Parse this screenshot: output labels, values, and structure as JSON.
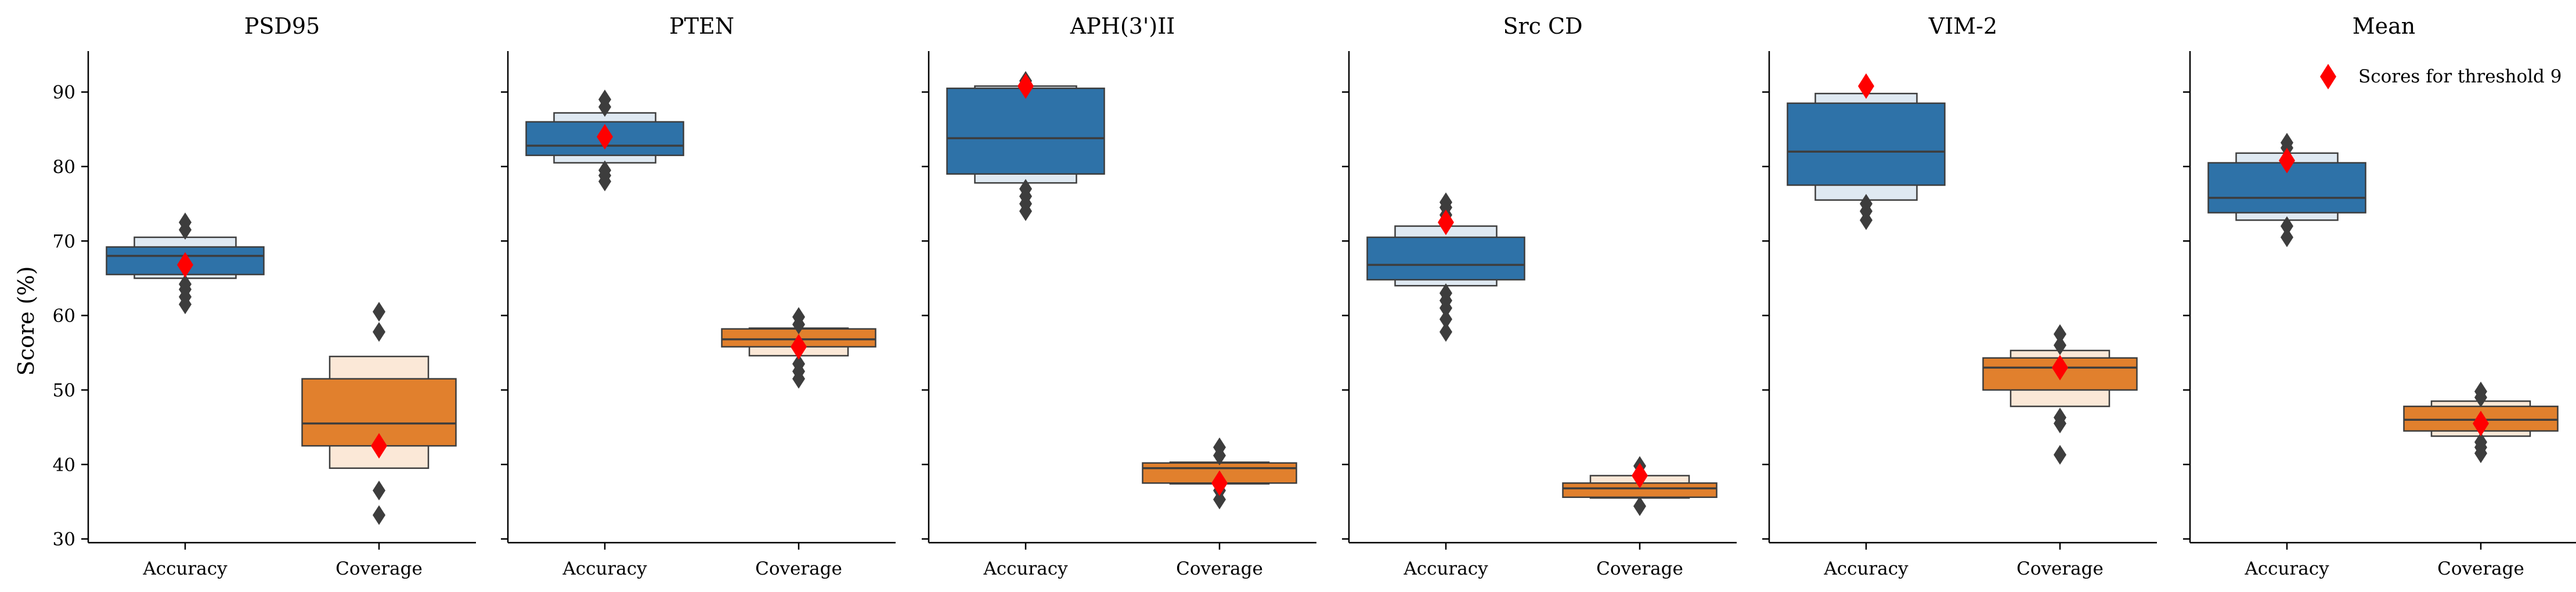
{
  "chart_data": {
    "type": "boxen",
    "ylabel": "Score (%)",
    "ylim": [
      29.5,
      95.5
    ],
    "yticks": [
      30,
      40,
      50,
      60,
      70,
      80,
      90
    ],
    "categories": [
      "Accuracy",
      "Coverage"
    ],
    "colors": {
      "Accuracy": {
        "box": "#2e72a8",
        "light": "#dfe9f2"
      },
      "Coverage": {
        "box": "#e1802d",
        "light": "#fbe8d7"
      },
      "marker": "#ff0000",
      "outlier": "#3d3d3d",
      "line": "#3d3d3d"
    },
    "legend": {
      "label": "Scores for threshold 9",
      "location": "top-right",
      "panel": "Mean"
    },
    "panels": [
      {
        "title": "PSD95",
        "boxes": [
          {
            "category": "Accuracy",
            "median": 68.0,
            "levels": [
              [
                65.5,
                69.2
              ],
              [
                65.0,
                70.5
              ]
            ],
            "outliers": [
              61.5,
              62.5,
              63.5,
              64.2,
              71.5,
              72.5
            ],
            "threshold9": 66.8
          },
          {
            "category": "Coverage",
            "median": 45.5,
            "levels": [
              [
                42.5,
                51.5
              ],
              [
                39.5,
                54.5
              ]
            ],
            "outliers": [
              33.2,
              36.5,
              57.8,
              60.5
            ],
            "threshold9": 42.5
          }
        ]
      },
      {
        "title": "PTEN",
        "boxes": [
          {
            "category": "Accuracy",
            "median": 82.8,
            "levels": [
              [
                81.5,
                86.0
              ],
              [
                80.5,
                87.2
              ]
            ],
            "outliers": [
              78.0,
              78.8,
              79.5,
              88.0,
              89.0
            ],
            "threshold9": 84.0
          },
          {
            "category": "Coverage",
            "median": 56.8,
            "levels": [
              [
                55.8,
                58.2
              ],
              [
                54.6,
                58.3
              ]
            ],
            "outliers": [
              51.5,
              52.5,
              53.5,
              58.8,
              59.8
            ],
            "threshold9": 55.8
          }
        ]
      },
      {
        "title": "APH(3')II",
        "boxes": [
          {
            "category": "Accuracy",
            "median": 83.8,
            "levels": [
              [
                79.0,
                90.5
              ],
              [
                77.8,
                90.8
              ]
            ],
            "outliers": [
              74.0,
              75.0,
              76.0,
              77.0,
              91.5
            ],
            "threshold9": 90.8
          },
          {
            "category": "Coverage",
            "median": 39.5,
            "levels": [
              [
                37.5,
                40.2
              ],
              [
                37.4,
                40.3
              ]
            ],
            "outliers": [
              35.3,
              36.5,
              41.2,
              42.3
            ],
            "threshold9": 37.5
          }
        ]
      },
      {
        "title": "Src CD",
        "boxes": [
          {
            "category": "Accuracy",
            "median": 66.8,
            "levels": [
              [
                64.8,
                70.5
              ],
              [
                64.0,
                72.0
              ]
            ],
            "outliers": [
              57.8,
              59.5,
              61.0,
              62.0,
              63.0,
              73.5,
              74.5,
              75.2
            ],
            "threshold9": 72.5
          },
          {
            "category": "Coverage",
            "median": 36.8,
            "levels": [
              [
                35.6,
                37.5
              ],
              [
                35.5,
                38.5
              ]
            ],
            "outliers": [
              34.4,
              38.8,
              39.8
            ],
            "threshold9": 38.5
          }
        ]
      },
      {
        "title": "VIM-2",
        "boxes": [
          {
            "category": "Accuracy",
            "median": 82.0,
            "levels": [
              [
                77.5,
                88.5
              ],
              [
                75.5,
                89.8
              ]
            ],
            "outliers": [
              72.8,
              74.0,
              75.0
            ],
            "threshold9": 90.8
          },
          {
            "category": "Coverage",
            "median": 53.0,
            "levels": [
              [
                50.0,
                54.3
              ],
              [
                47.8,
                55.3
              ]
            ],
            "outliers": [
              41.3,
              45.5,
              46.3,
              56.0,
              57.5
            ],
            "threshold9": 53.0
          }
        ]
      },
      {
        "title": "Mean",
        "boxes": [
          {
            "category": "Accuracy",
            "median": 75.8,
            "levels": [
              [
                73.8,
                80.5
              ],
              [
                72.8,
                81.8
              ]
            ],
            "outliers": [
              70.5,
              72.0,
              82.5,
              83.2
            ],
            "threshold9": 80.8
          },
          {
            "category": "Coverage",
            "median": 46.0,
            "levels": [
              [
                44.5,
                47.8
              ],
              [
                43.8,
                48.5
              ]
            ],
            "outliers": [
              41.5,
              42.3,
              43.0,
              49.0,
              49.8
            ],
            "threshold9": 45.5
          }
        ]
      }
    ]
  }
}
